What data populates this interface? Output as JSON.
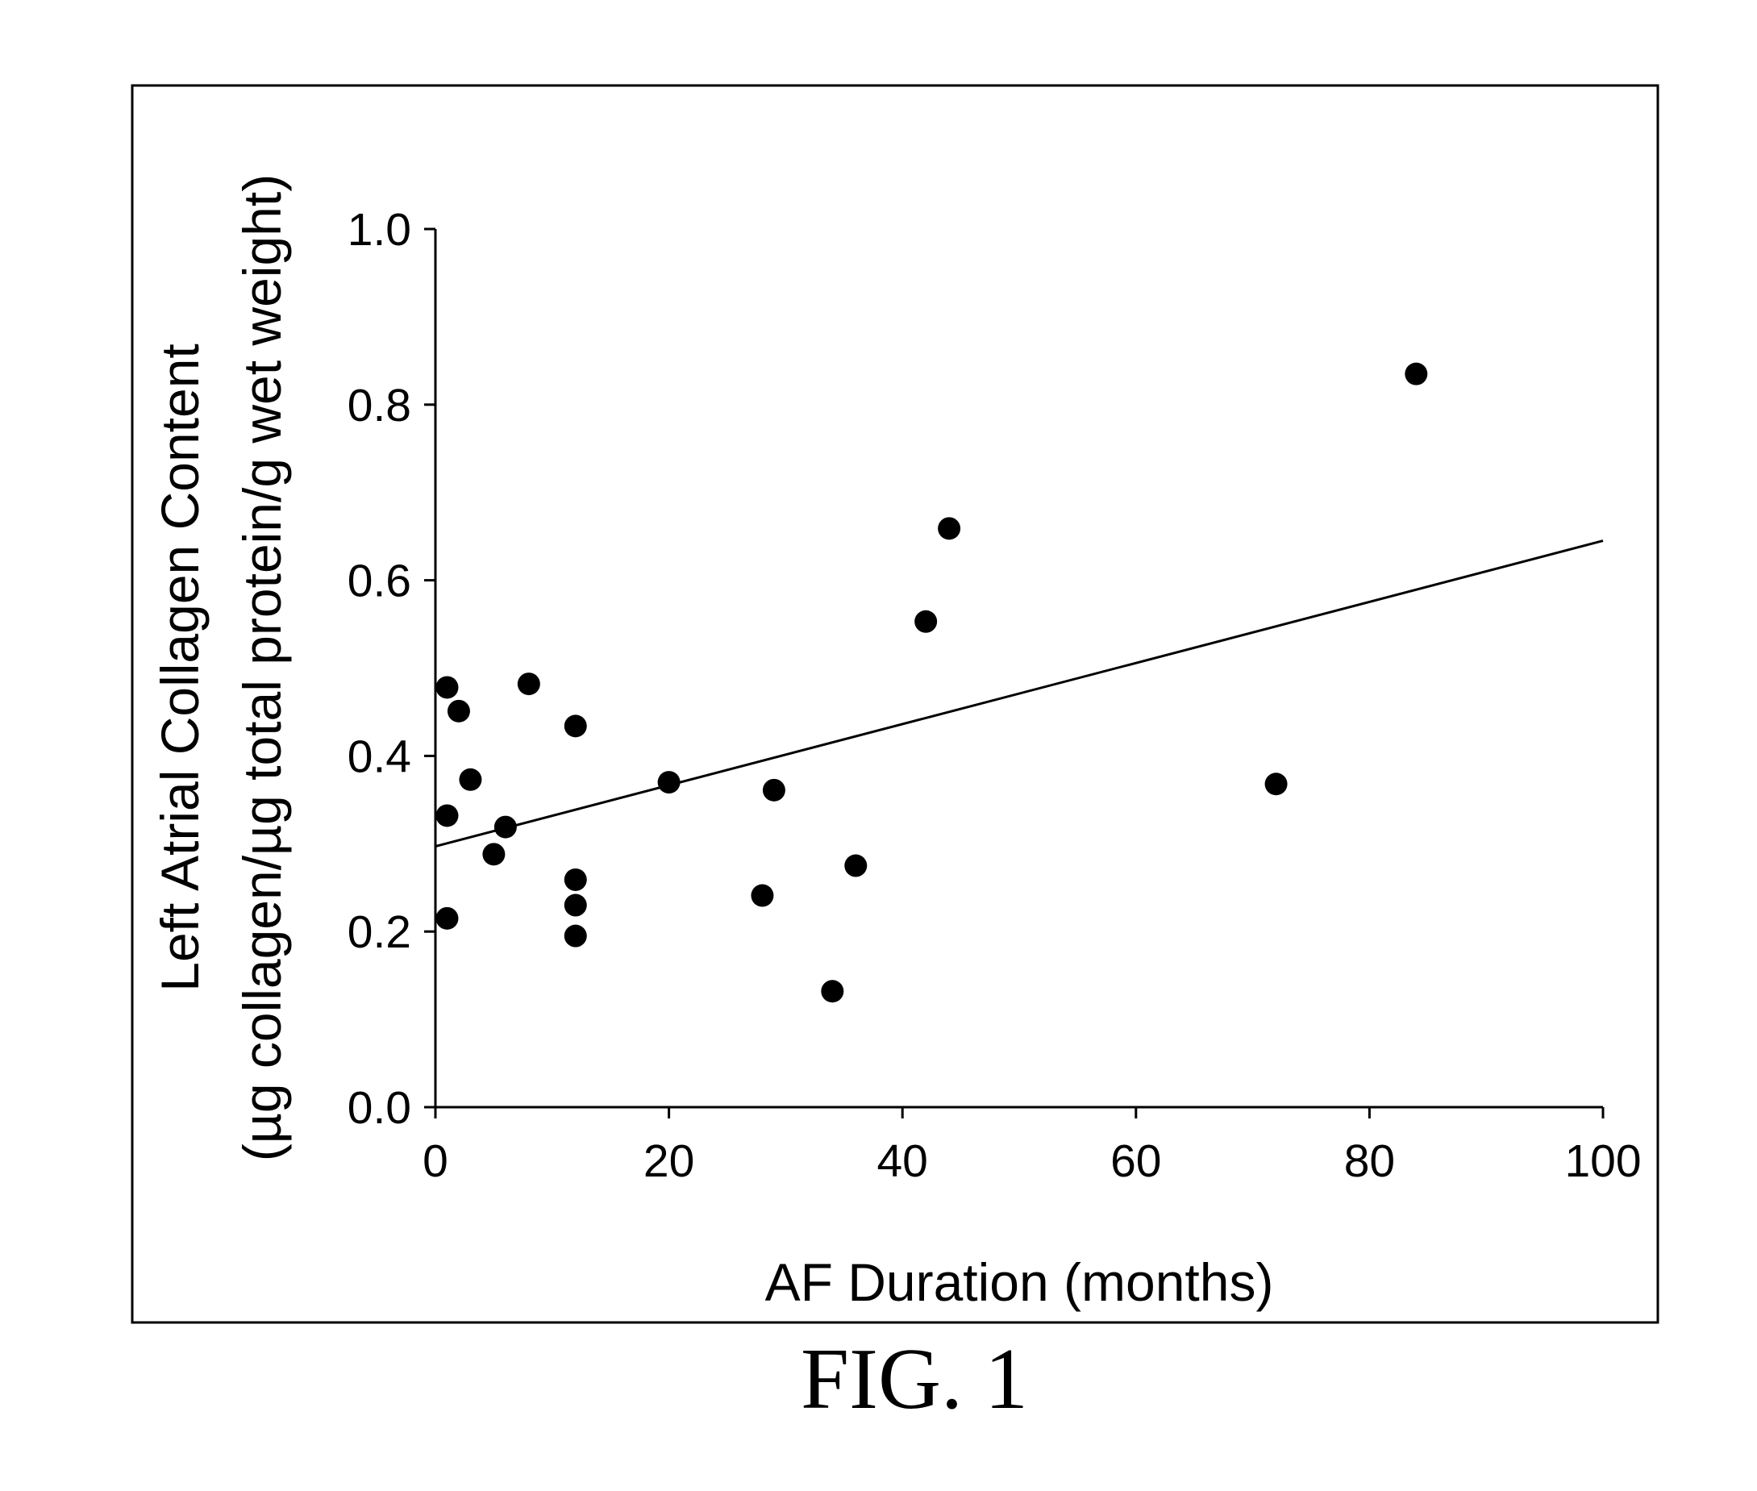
{
  "caption": "FIG. 1",
  "chart_data": {
    "type": "scatter",
    "xlabel": "AF Duration (months)",
    "ylabel_line1": "Left Atrial Collagen Content",
    "ylabel_line2": "(µg collagen/µg total protein/g wet weight)",
    "xlim": [
      0,
      100
    ],
    "ylim": [
      0,
      1.0
    ],
    "xticks": [
      0,
      20,
      40,
      60,
      80,
      100
    ],
    "xtick_labels": [
      "0",
      "20",
      "40",
      "60",
      "80",
      "100"
    ],
    "yticks": [
      0,
      0.2,
      0.4,
      0.6,
      0.8,
      1.0
    ],
    "ytick_labels": [
      "0.0",
      "0.2",
      "0.4",
      "0.6",
      "0.8",
      "1.0"
    ],
    "grid": false,
    "legend": false,
    "marker_color": "#000000",
    "points": [
      {
        "x": 1,
        "y": 0.478
      },
      {
        "x": 2,
        "y": 0.451
      },
      {
        "x": 1,
        "y": 0.332
      },
      {
        "x": 1,
        "y": 0.215
      },
      {
        "x": 3,
        "y": 0.373
      },
      {
        "x": 5,
        "y": 0.288
      },
      {
        "x": 6,
        "y": 0.319
      },
      {
        "x": 8,
        "y": 0.482
      },
      {
        "x": 12,
        "y": 0.434
      },
      {
        "x": 12,
        "y": 0.259
      },
      {
        "x": 12,
        "y": 0.23
      },
      {
        "x": 12,
        "y": 0.195
      },
      {
        "x": 20,
        "y": 0.37
      },
      {
        "x": 28,
        "y": 0.241
      },
      {
        "x": 29,
        "y": 0.361
      },
      {
        "x": 34,
        "y": 0.132
      },
      {
        "x": 36,
        "y": 0.275
      },
      {
        "x": 42,
        "y": 0.553
      },
      {
        "x": 44,
        "y": 0.659
      },
      {
        "x": 72,
        "y": 0.368
      },
      {
        "x": 84,
        "y": 0.835
      }
    ],
    "regression_line": {
      "x": [
        0,
        100
      ],
      "y": [
        0.297,
        0.645
      ]
    }
  }
}
